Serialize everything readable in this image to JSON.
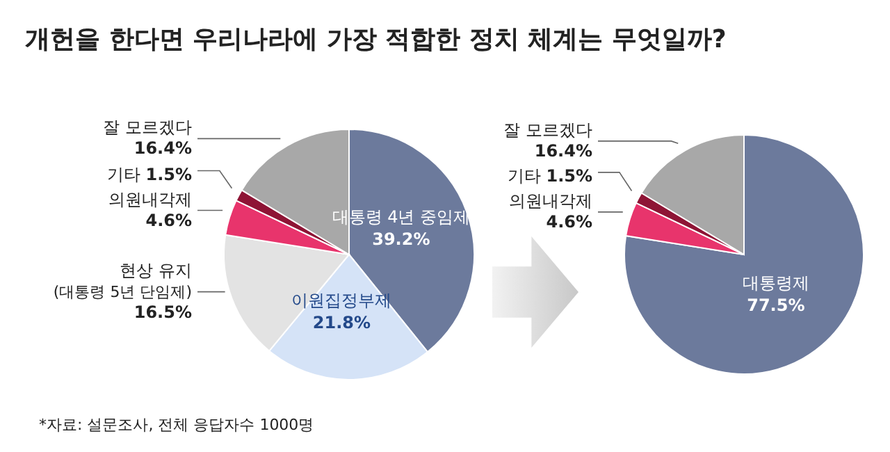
{
  "chart_data": [
    {
      "type": "pie",
      "title": "개헌을 한다면 우리나라에 가장 적합한 정치 체계는 무엇일까?",
      "annotations": [
        "*자료: 설문조사, 전체 응답자수 1000명"
      ],
      "categories": [
        "대통령 4년 중임제",
        "이원집정부제",
        "현상 유지\n(대통령 5년 단임제)",
        "의원내각제",
        "기타",
        "잘 모르겠다"
      ],
      "values": [
        39.2,
        21.8,
        16.5,
        4.6,
        1.5,
        16.4
      ],
      "value_labels": [
        "39.2%",
        "21.8%",
        "16.5%",
        "4.6%",
        "1.5%",
        "16.4%"
      ],
      "colors": [
        "#6c7a9c",
        "#d5e3f7",
        "#e3e3e3",
        "#e8346c",
        "#8e1435",
        "#a8a8a8"
      ],
      "legend": false
    },
    {
      "type": "pie",
      "categories": [
        "대통령제",
        "의원내각제",
        "기타",
        "잘 모르겠다"
      ],
      "values": [
        77.5,
        4.6,
        1.5,
        16.4
      ],
      "value_labels": [
        "77.5%",
        "4.6%",
        "1.5%",
        "16.4%"
      ],
      "colors": [
        "#6c7a9c",
        "#e8346c",
        "#8e1435",
        "#a8a8a8"
      ],
      "legend": false
    }
  ]
}
